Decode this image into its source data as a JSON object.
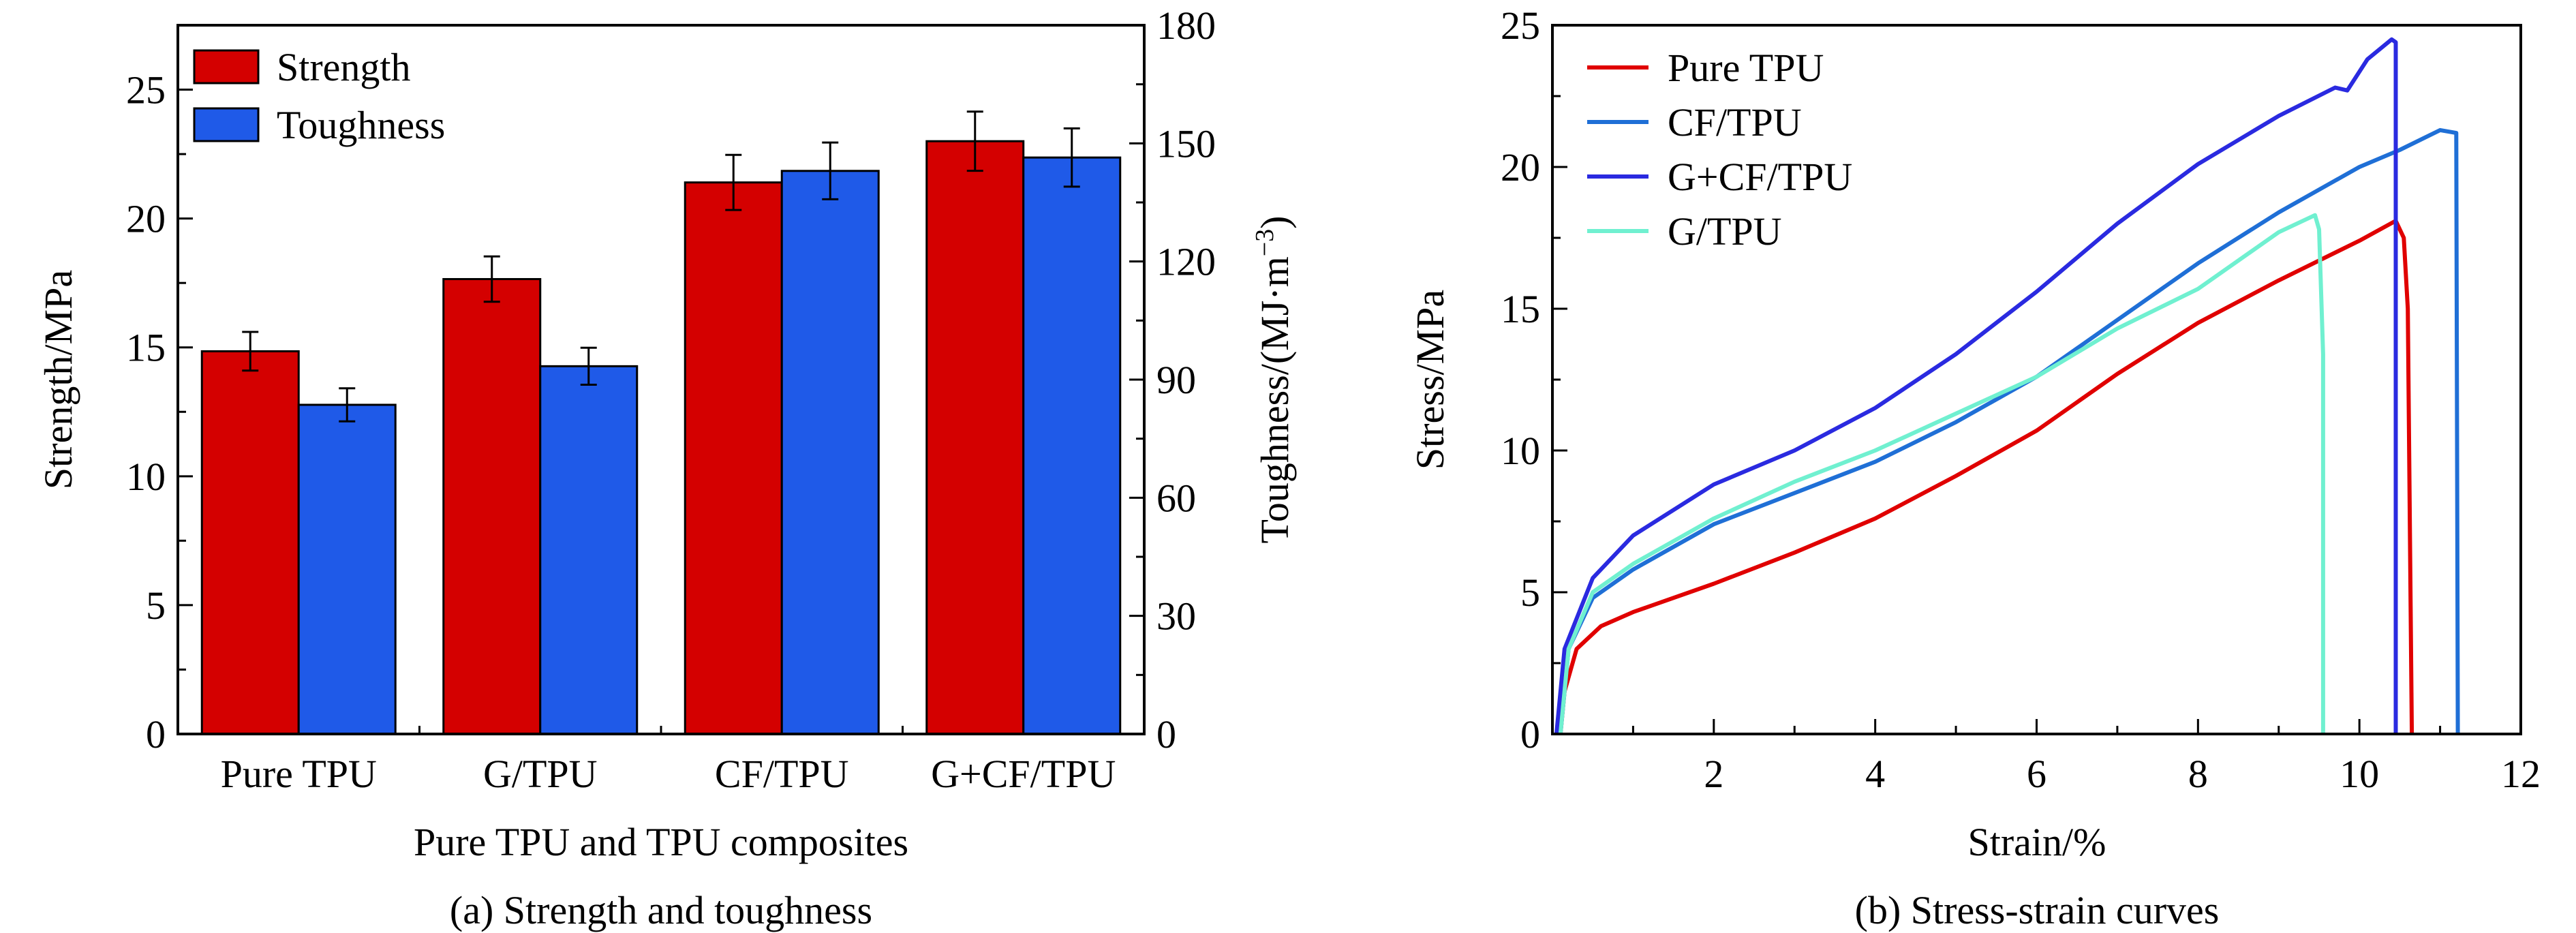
{
  "chart_data": [
    {
      "type": "bar",
      "caption": "(a) Strength and toughness",
      "xlabel": "Pure TPU and TPU composites",
      "ylabel": "Strength/MPa",
      "ylabel_right": "Toughness/(MJ·m",
      "ylabel_right_sup": "−3",
      "ylabel_right_end": ")",
      "categories": [
        "Pure TPU",
        "G/TPU",
        "CF/TPU",
        "G+CF/TPU"
      ],
      "ylim": [
        0,
        27.5
      ],
      "yticks": [
        0,
        5,
        10,
        15,
        20,
        25
      ],
      "ylim_right": [
        0,
        180
      ],
      "yticks_right": [
        0,
        30,
        60,
        90,
        120,
        150,
        180
      ],
      "legend_position": "top-left",
      "series": [
        {
          "name": "Strength",
          "axis": "left",
          "color": "#d40000",
          "values": [
            14.85,
            17.65,
            21.4,
            23.0
          ],
          "errors": [
            0.75,
            0.88,
            1.07,
            1.15
          ]
        },
        {
          "name": "Toughness",
          "axis": "right",
          "color": "#1f5ae8",
          "values": [
            83.6,
            93.4,
            143.0,
            146.4
          ],
          "errors": [
            4.2,
            4.7,
            7.2,
            7.4
          ]
        }
      ]
    },
    {
      "type": "line",
      "caption": "(b) Stress-strain curves",
      "xlabel": "Strain/%",
      "ylabel": "Stress/MPa",
      "xlim": [
        0,
        12
      ],
      "xticks": [
        2,
        4,
        6,
        8,
        10,
        12
      ],
      "ylim": [
        0,
        25
      ],
      "yticks": [
        0,
        5,
        10,
        15,
        20,
        25
      ],
      "legend_position": "top-left",
      "series": [
        {
          "name": "Pure TPU",
          "color": "#e00000",
          "x": [
            0.1,
            0.15,
            0.3,
            0.6,
            1,
            2,
            3,
            4,
            5,
            6,
            7,
            8,
            9,
            10,
            10.45,
            10.55,
            10.6,
            10.65
          ],
          "y": [
            0,
            1.5,
            3,
            3.8,
            4.3,
            5.3,
            6.4,
            7.6,
            9.1,
            10.7,
            12.7,
            14.5,
            16,
            17.4,
            18.1,
            17.5,
            15,
            0
          ]
        },
        {
          "name": "CF/TPU",
          "color": "#1f6fd6",
          "x": [
            0.1,
            0.2,
            0.5,
            1,
            2,
            3,
            4,
            5,
            6,
            7,
            8,
            9,
            10,
            10.5,
            11,
            11.2,
            11.22
          ],
          "y": [
            0,
            3,
            4.8,
            5.8,
            7.4,
            8.5,
            9.6,
            11,
            12.6,
            14.6,
            16.6,
            18.4,
            20,
            20.6,
            21.3,
            21.2,
            0
          ]
        },
        {
          "name": "G+CF/TPU",
          "color": "#2a2ae0",
          "x": [
            0.05,
            0.15,
            0.5,
            1,
            2,
            3,
            4,
            5,
            6,
            7,
            8,
            9,
            9.7,
            9.85,
            10.1,
            10.4,
            10.45,
            10.45
          ],
          "y": [
            0,
            3,
            5.5,
            7,
            8.8,
            10,
            11.5,
            13.4,
            15.6,
            18,
            20.1,
            21.8,
            22.8,
            22.7,
            23.8,
            24.5,
            24.4,
            0
          ]
        },
        {
          "name": "G/TPU",
          "color": "#70f0d0",
          "x": [
            0.1,
            0.2,
            0.5,
            1,
            2,
            3,
            4,
            5,
            6,
            7,
            8,
            9,
            9.45,
            9.5,
            9.55,
            9.55
          ],
          "y": [
            0,
            3,
            5,
            6,
            7.6,
            8.9,
            10,
            11.3,
            12.6,
            14.3,
            15.7,
            17.7,
            18.3,
            17.8,
            13.4,
            0
          ]
        }
      ]
    }
  ]
}
